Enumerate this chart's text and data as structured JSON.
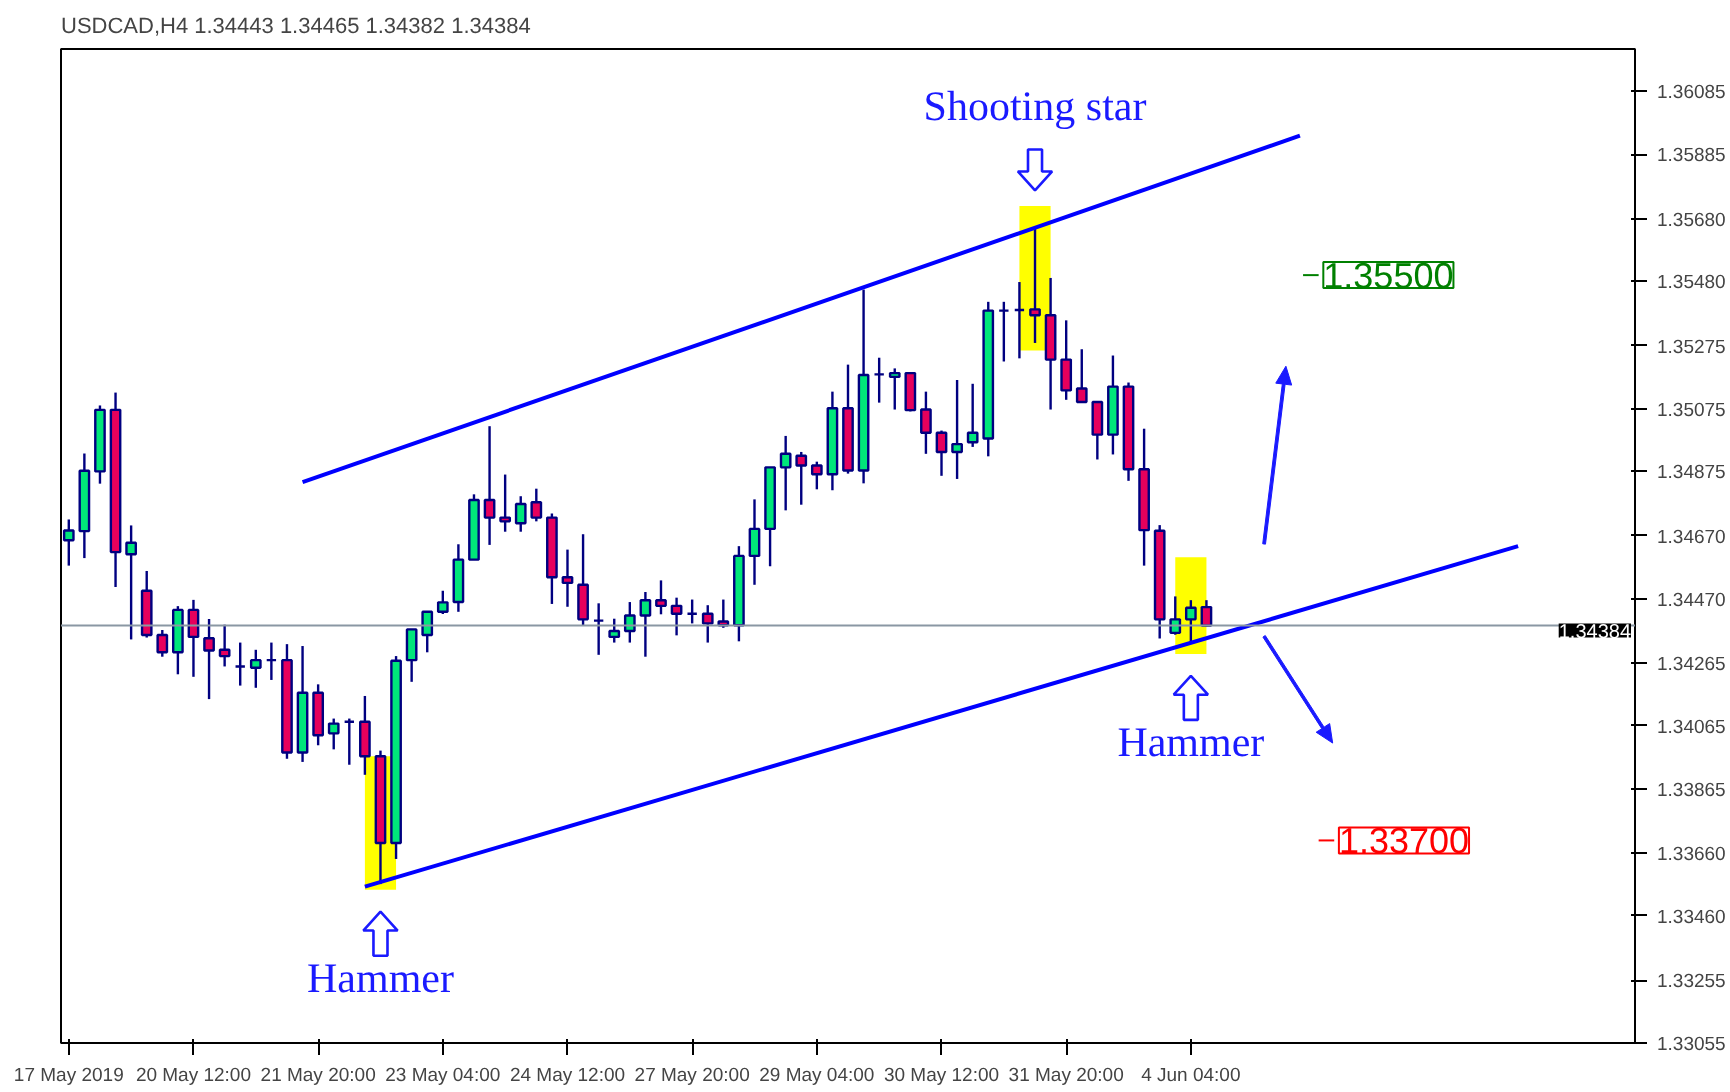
{
  "chart_data": {
    "type": "candlestick",
    "title": "USDCAD,H4  1.34443 1.34465 1.34382 1.34384",
    "categories": [
      "17 May 2019",
      null,
      null,
      null,
      null,
      null,
      null,
      null,
      "20 May 12:00",
      null,
      null,
      null,
      null,
      null,
      null,
      null,
      "21 May 20:00",
      null,
      null,
      null,
      null,
      null,
      null,
      null,
      "23 May 04:00",
      null,
      null,
      null,
      null,
      null,
      null,
      null,
      "24 May 12:00",
      null,
      null,
      null,
      null,
      null,
      null,
      null,
      "27 May 20:00",
      null,
      null,
      null,
      null,
      null,
      null,
      null,
      "29 May 04:00",
      null,
      null,
      null,
      null,
      null,
      null,
      null,
      "30 May 12:00",
      null,
      null,
      null,
      null,
      null,
      null,
      null,
      "31 May 20:00",
      null,
      null,
      null,
      null,
      null,
      null,
      null,
      "4 Jun 04:00",
      null,
      null,
      null,
      null,
      null,
      null,
      null,
      null,
      null,
      null,
      null,
      null,
      null,
      null,
      null,
      null,
      null,
      null,
      null,
      null,
      null,
      null,
      null,
      null,
      null,
      null,
      null,
      null
    ],
    "ohlc": [
      [
        1.34656,
        1.34722,
        1.34575,
        1.34687
      ],
      [
        1.34685,
        1.34932,
        1.34599,
        1.34877
      ],
      [
        1.34875,
        1.35085,
        1.34836,
        1.35071
      ],
      [
        1.35071,
        1.35126,
        1.34507,
        1.34618
      ],
      [
        1.34611,
        1.34703,
        1.3434,
        1.34648
      ],
      [
        1.34495,
        1.34558,
        1.34346,
        1.34354
      ],
      [
        1.34354,
        1.3437,
        1.34285,
        1.34299
      ],
      [
        1.34299,
        1.34446,
        1.34229,
        1.34434
      ],
      [
        1.34434,
        1.34466,
        1.34221,
        1.34348
      ],
      [
        1.34344,
        1.34405,
        1.3415,
        1.34305
      ],
      [
        1.34307,
        1.34387,
        1.34254,
        1.34287
      ],
      [
        1.34254,
        1.3433,
        1.34193,
        1.34254
      ],
      [
        1.3425,
        1.34307,
        1.34186,
        1.34274
      ],
      [
        1.34274,
        1.3433,
        1.34211,
        1.34274
      ],
      [
        1.34274,
        1.34325,
        1.3396,
        1.3398
      ],
      [
        1.3398,
        1.34319,
        1.3395,
        1.3417
      ],
      [
        1.3417,
        1.34197,
        1.34003,
        1.34035
      ],
      [
        1.34041,
        1.34088,
        1.3399,
        1.34072
      ],
      [
        1.34078,
        1.34088,
        1.33941,
        1.34078
      ],
      [
        1.34078,
        1.3416,
        1.33909,
        1.33968
      ],
      [
        1.33968,
        1.33986,
        1.33561,
        1.33692
      ],
      [
        1.33692,
        1.34287,
        1.33641,
        1.34272
      ],
      [
        1.34274,
        1.34372,
        1.34205,
        1.34372
      ],
      [
        1.34354,
        1.34428,
        1.34299,
        1.34428
      ],
      [
        1.34428,
        1.34495,
        1.34421,
        1.34458
      ],
      [
        1.34459,
        1.34643,
        1.34428,
        1.34594
      ],
      [
        1.34594,
        1.34802,
        1.34594,
        1.34784
      ],
      [
        1.34784,
        1.35019,
        1.34641,
        1.34728
      ],
      [
        1.34728,
        1.34865,
        1.34683,
        1.34716
      ],
      [
        1.3471,
        1.34796,
        1.34683,
        1.34771
      ],
      [
        1.34777,
        1.3482,
        1.34716,
        1.34728
      ],
      [
        1.34728,
        1.34741,
        1.34453,
        1.34538
      ],
      [
        1.34538,
        1.34626,
        1.34444,
        1.3452
      ],
      [
        1.34514,
        1.34675,
        1.34385,
        1.34404
      ],
      [
        1.344,
        1.34455,
        1.34291,
        1.344
      ],
      [
        1.34348,
        1.34406,
        1.3433,
        1.34367
      ],
      [
        1.34367,
        1.34459,
        1.3433,
        1.34416
      ],
      [
        1.34416,
        1.34491,
        1.34285,
        1.34465
      ],
      [
        1.34465,
        1.34528,
        1.3442,
        1.34447
      ],
      [
        1.34447,
        1.34473,
        1.34353,
        1.34422
      ],
      [
        1.34422,
        1.34467,
        1.34391,
        1.34422
      ],
      [
        1.34422,
        1.34449,
        1.3433,
        1.34391
      ],
      [
        1.34397,
        1.34467,
        1.34377,
        1.34385
      ],
      [
        1.34385,
        1.34637,
        1.34334,
        1.34606
      ],
      [
        1.34606,
        1.34786,
        1.34514,
        1.34692
      ],
      [
        1.34692,
        1.34888,
        1.34573,
        1.34888
      ],
      [
        1.34888,
        1.34988,
        1.34751,
        1.34931
      ],
      [
        1.34925,
        1.34937,
        1.34769,
        1.34894
      ],
      [
        1.34894,
        1.34906,
        1.34818,
        1.34866
      ],
      [
        1.34866,
        1.35129,
        1.34815,
        1.35076
      ],
      [
        1.35076,
        1.35215,
        1.34868,
        1.34878
      ],
      [
        1.34878,
        1.35454,
        1.34837,
        1.35182
      ],
      [
        1.35184,
        1.35237,
        1.35094,
        1.35184
      ],
      [
        1.35176,
        1.35203,
        1.35072,
        1.35188
      ],
      [
        1.35188,
        1.35188,
        1.35066,
        1.3507
      ],
      [
        1.35072,
        1.35129,
        1.34931,
        1.34998
      ],
      [
        1.34998,
        1.35005,
        1.34861,
        1.34937
      ],
      [
        1.34937,
        1.35166,
        1.34851,
        1.34962
      ],
      [
        1.34968,
        1.35154,
        1.34953,
        1.34998
      ],
      [
        1.3498,
        1.35415,
        1.34923,
        1.35387
      ],
      [
        1.35387,
        1.35415,
        1.35225,
        1.35387
      ],
      [
        1.35389,
        1.35478,
        1.35235,
        1.35389
      ],
      [
        1.35391,
        1.35652,
        1.35284,
        1.35372
      ],
      [
        1.35372,
        1.35491,
        1.35072,
        1.35231
      ],
      [
        1.35231,
        1.35356,
        1.35103,
        1.35133
      ],
      [
        1.35139,
        1.35264,
        1.35096,
        1.35096
      ],
      [
        1.35096,
        1.35096,
        1.34913,
        1.34992
      ],
      [
        1.34992,
        1.35244,
        1.34929,
        1.35145
      ],
      [
        1.35145,
        1.35158,
        1.34845,
        1.34882
      ],
      [
        1.34882,
        1.35011,
        1.34575,
        1.34688
      ],
      [
        1.34686,
        1.34704,
        1.34343,
        1.34404
      ],
      [
        1.34361,
        1.34477,
        1.34355,
        1.34404
      ],
      [
        1.34404,
        1.34465,
        1.3433,
        1.34441
      ],
      [
        1.34443,
        1.34465,
        1.34382,
        1.34384
      ],
      null,
      null,
      null,
      null,
      null,
      null,
      null,
      null,
      null,
      null,
      null,
      null,
      null,
      null,
      null,
      null,
      null,
      null,
      null,
      null,
      null,
      null,
      null,
      null,
      null,
      null,
      null
    ],
    "colors": [
      "#00e67a",
      "#00e67a",
      "#00e67a",
      "#e6005c",
      "#00e67a",
      "#e6005c",
      "#e6005c",
      "#00e67a",
      "#e6005c",
      "#e6005c",
      "#e6005c",
      "#000080",
      "#00e67a",
      "#000080",
      "#e6005c",
      "#00e67a",
      "#e6005c",
      "#00e67a",
      "#000080",
      "#e6005c",
      "#e6005c",
      "#00e67a",
      "#00e67a",
      "#00e67a",
      "#00e67a",
      "#00e67a",
      "#00e67a",
      "#e6005c",
      "#e6005c",
      "#00e67a",
      "#e6005c",
      "#e6005c",
      "#e6005c",
      "#e6005c",
      "#000080",
      "#00e67a",
      "#00e67a",
      "#00e67a",
      "#e6005c",
      "#e6005c",
      "#000080",
      "#e6005c",
      "#e6005c",
      "#00e67a",
      "#00e67a",
      "#00e67a",
      "#00e67a",
      "#e6005c",
      "#e6005c",
      "#00e67a",
      "#e6005c",
      "#00e67a",
      "#000080",
      "#00e67a",
      "#e6005c",
      "#e6005c",
      "#e6005c",
      "#00e67a",
      "#00e67a",
      "#00e67a",
      "#000080",
      "#000080",
      "#e6005c",
      "#e6005c",
      "#e6005c",
      "#e6005c",
      "#e6005c",
      "#00e67a",
      "#e6005c",
      "#e6005c",
      "#e6005c",
      "#00e67a",
      "#00e67a",
      "#e6005c",
      null,
      null,
      null,
      null,
      null,
      null,
      null,
      null,
      null,
      null,
      null,
      null,
      null,
      null,
      null,
      null,
      null,
      null,
      null,
      null,
      null,
      null,
      null,
      null,
      null,
      null,
      null
    ],
    "series": [
      {
        "type": "bar",
        "color": "#ffff00",
        "base": [
          null,
          null,
          null,
          null,
          null,
          null,
          null,
          null,
          null,
          null,
          null,
          null,
          null,
          null,
          null,
          null,
          null,
          null,
          null,
          null,
          1.33543,
          null,
          null,
          null,
          null,
          null,
          null,
          null,
          null,
          null,
          null,
          null,
          null,
          null,
          null,
          null,
          null,
          null,
          null,
          null,
          null,
          null,
          null,
          null,
          null,
          null,
          null,
          null,
          null,
          null,
          null,
          null,
          null,
          null,
          null,
          null,
          null,
          null,
          null,
          null,
          null,
          null,
          1.3526,
          null,
          null,
          null,
          null,
          null,
          null,
          null,
          null,
          null,
          1.34294,
          null,
          null,
          null,
          null,
          null,
          null,
          null,
          null,
          null,
          null,
          null,
          null,
          null,
          null,
          null,
          null,
          null,
          null,
          null,
          null,
          null,
          null,
          null,
          null,
          null,
          null,
          null,
          null
        ],
        "values": [
          null,
          null,
          null,
          null,
          null,
          null,
          null,
          null,
          null,
          null,
          null,
          null,
          null,
          null,
          null,
          null,
          null,
          null,
          null,
          null,
          0.00425,
          null,
          null,
          null,
          null,
          null,
          null,
          null,
          null,
          null,
          null,
          null,
          null,
          null,
          null,
          null,
          null,
          null,
          null,
          null,
          null,
          null,
          null,
          null,
          null,
          null,
          null,
          null,
          null,
          null,
          null,
          null,
          null,
          null,
          null,
          null,
          null,
          null,
          null,
          null,
          null,
          null,
          0.0046,
          null,
          null,
          null,
          null,
          null,
          null,
          null,
          null,
          null,
          0.00308,
          null,
          null,
          null,
          null,
          null,
          null,
          null,
          null,
          null,
          null,
          null,
          null,
          null,
          null,
          null,
          null,
          null,
          null,
          null,
          null,
          null,
          null,
          null,
          null,
          null,
          null,
          null,
          null
        ]
      },
      {
        "type": "line",
        "color": "#0000ff",
        "values": [
          null,
          null,
          null,
          null,
          null,
          null,
          null,
          null,
          null,
          null,
          null,
          null,
          null,
          null,
          null,
          1.34841,
          null,
          null,
          null,
          null,
          null,
          null,
          null,
          null,
          null,
          null,
          null,
          null,
          null,
          null,
          null,
          null,
          null,
          null,
          null,
          null,
          null,
          null,
          null,
          null,
          null,
          null,
          null,
          null,
          null,
          null,
          null,
          null,
          null,
          null,
          null,
          null,
          null,
          null,
          null,
          null,
          null,
          null,
          null,
          null,
          null,
          null,
          null,
          null,
          null,
          null,
          null,
          null,
          null,
          null,
          null,
          null,
          null,
          null,
          null,
          null,
          null,
          null,
          null,
          1.35944,
          null,
          null,
          null,
          null,
          null,
          null,
          null,
          null,
          null,
          null,
          null,
          null,
          null,
          null,
          null,
          null,
          null,
          null,
          null,
          null,
          null
        ]
      },
      {
        "type": "line",
        "color": "#0000ff",
        "values": [
          null,
          null,
          null,
          null,
          null,
          null,
          null,
          null,
          null,
          null,
          null,
          null,
          null,
          null,
          null,
          null,
          null,
          null,
          null,
          1.33553,
          null,
          null,
          null,
          null,
          null,
          null,
          null,
          null,
          null,
          null,
          null,
          null,
          null,
          null,
          null,
          null,
          null,
          null,
          null,
          null,
          null,
          null,
          null,
          null,
          null,
          null,
          null,
          null,
          null,
          null,
          null,
          null,
          null,
          null,
          null,
          null,
          null,
          null,
          null,
          null,
          null,
          null,
          null,
          null,
          null,
          null,
          null,
          null,
          null,
          null,
          null,
          null,
          null,
          null,
          null,
          null,
          null,
          null,
          null,
          null,
          null,
          null,
          null,
          null,
          null,
          null,
          null,
          null,
          null,
          null,
          null,
          null,
          null,
          1.34637,
          null,
          null,
          null,
          null,
          null,
          null,
          null
        ]
      }
    ],
    "ylim": [
      1.33055,
      1.3622
    ],
    "yticks": [
      {
        "value": 1.36085,
        "label": "1.36085"
      },
      {
        "value": 1.35885,
        "label": "1.35885"
      },
      {
        "value": 1.3568,
        "label": "1.35680"
      },
      {
        "value": 1.3548,
        "label": "1.35480"
      },
      {
        "value": 1.35275,
        "label": "1.35275"
      },
      {
        "value": 1.35075,
        "label": "1.35075"
      },
      {
        "value": 1.34875,
        "label": "1.34875"
      },
      {
        "value": 1.3467,
        "label": "1.34670"
      },
      {
        "value": 1.3447,
        "label": "1.34470"
      },
      {
        "value": 1.34265,
        "label": "1.34265"
      },
      {
        "value": 1.34065,
        "label": "1.34065"
      },
      {
        "value": 1.33865,
        "label": "1.33865"
      },
      {
        "value": 1.3366,
        "label": "1.33660"
      },
      {
        "value": 1.3346,
        "label": "1.33460"
      },
      {
        "value": 1.33255,
        "label": "1.33255"
      },
      {
        "value": 1.33055,
        "label": "1.33055"
      }
    ],
    "ref_lines": [
      {
        "axis": "y",
        "value": 1.34384,
        "label": "1.34384",
        "color": "#8a97a3"
      }
    ],
    "annotations": [
      "Hammer",
      "Shooting star",
      "Hammer",
      "1.35500",
      "1.33700"
    ],
    "grid": false
  }
}
